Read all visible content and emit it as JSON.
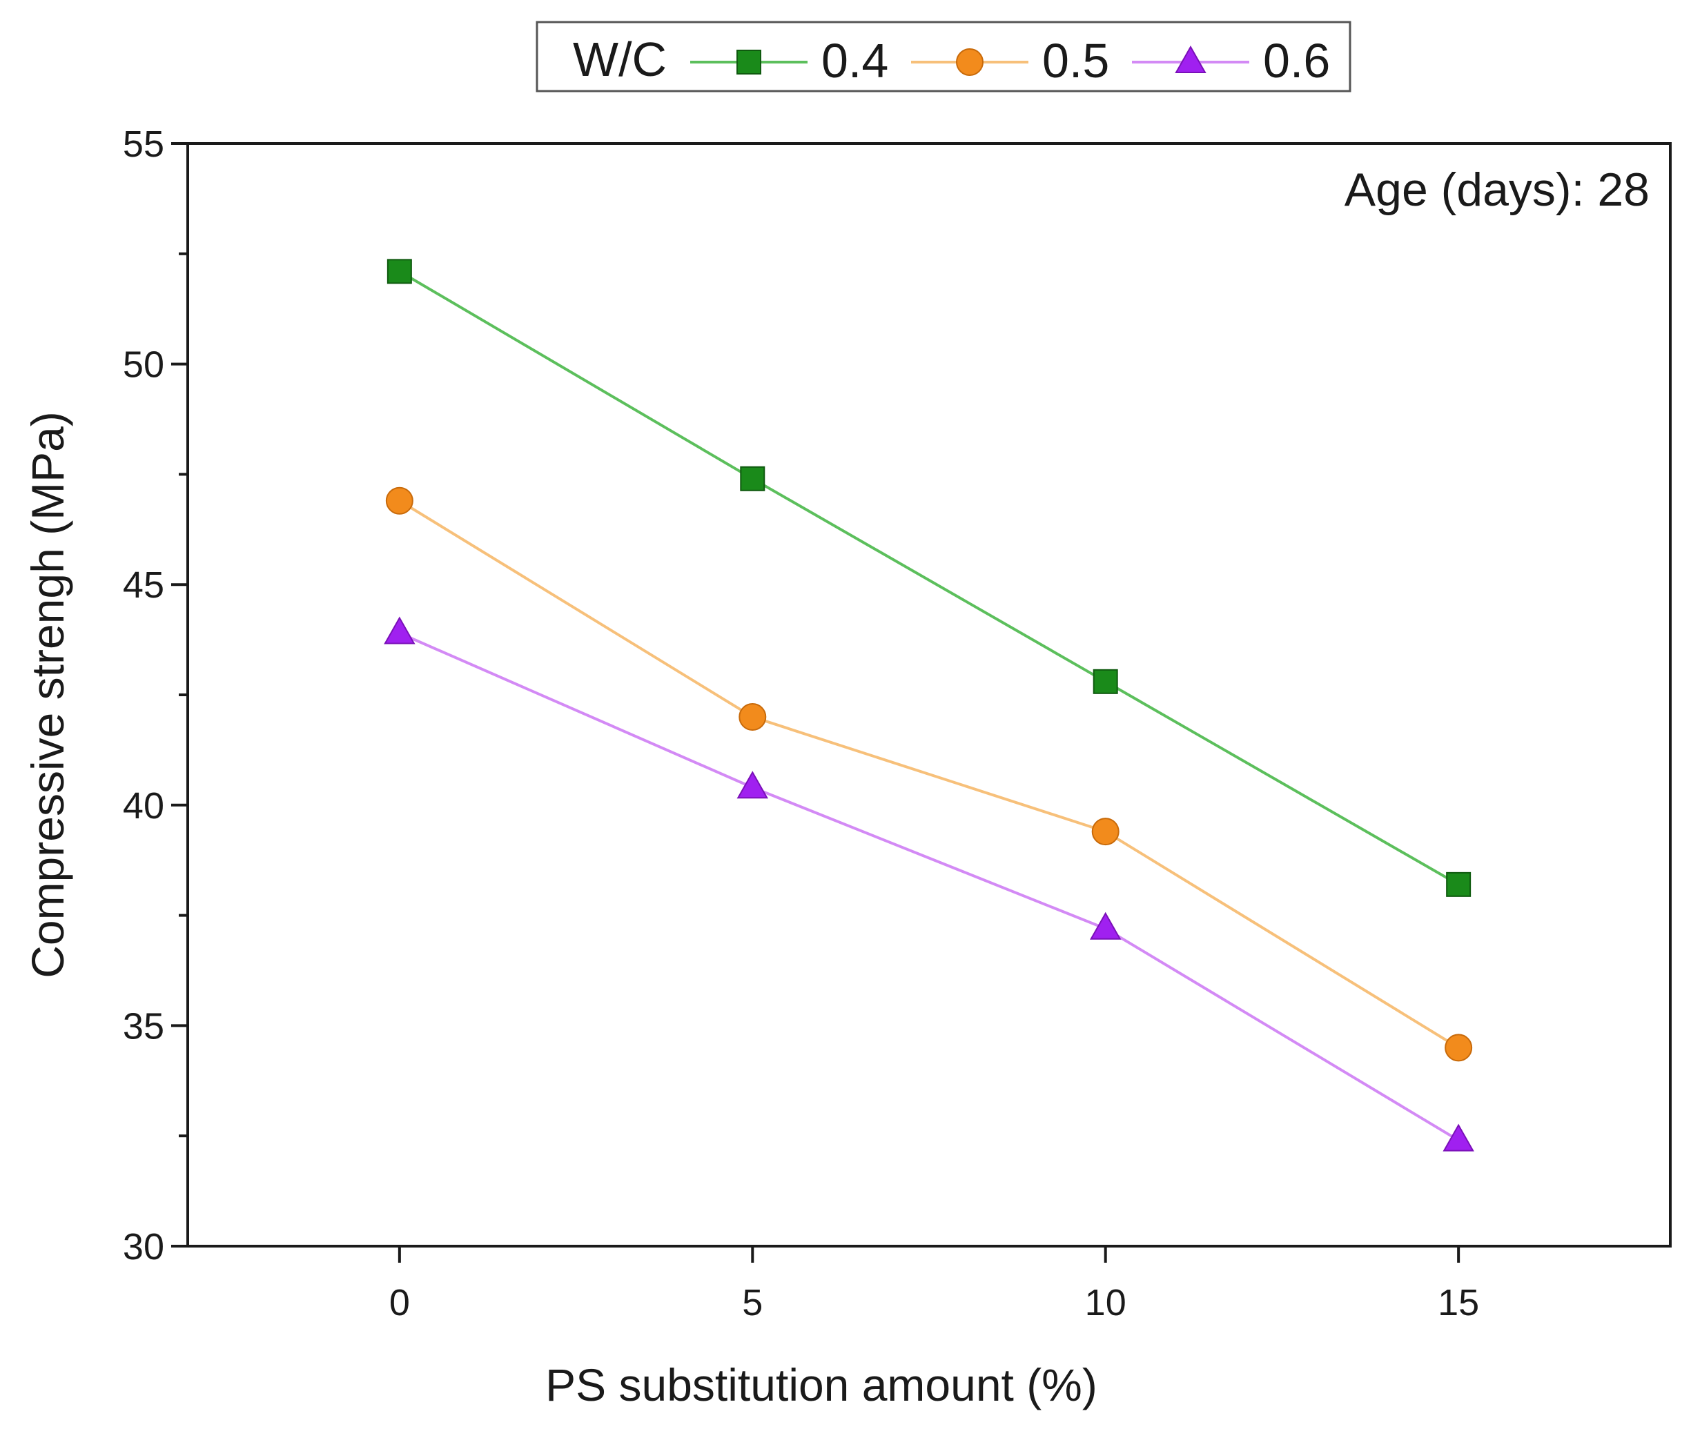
{
  "chart_data": {
    "type": "line",
    "title": "",
    "xlabel": "PS substitution amount (%)",
    "ylabel": "Compressive strengh (MPa)",
    "annotation": "Age (days): 28",
    "x": [
      0,
      5,
      10,
      15
    ],
    "x_ticks": [
      "0",
      "5",
      "10",
      "15"
    ],
    "y_ticks": [
      "30",
      "35",
      "40",
      "45",
      "50",
      "55"
    ],
    "xlim": [
      -3,
      18
    ],
    "ylim": [
      30,
      55
    ],
    "legend_title": "W/C",
    "legend_position": "top-center",
    "series": [
      {
        "name": "0.4",
        "marker": "square",
        "color": "#1a8a1a",
        "line_color": "#5cbf5c",
        "values": [
          52.1,
          47.4,
          42.8,
          38.2
        ]
      },
      {
        "name": "0.5",
        "marker": "circle",
        "color": "#f28b1c",
        "line_color": "#f7c07a",
        "values": [
          46.9,
          42.0,
          39.4,
          34.5
        ]
      },
      {
        "name": "0.6",
        "marker": "triangle",
        "color": "#a020f0",
        "line_color": "#d38af5",
        "values": [
          43.9,
          40.4,
          37.2,
          32.4
        ]
      }
    ]
  }
}
